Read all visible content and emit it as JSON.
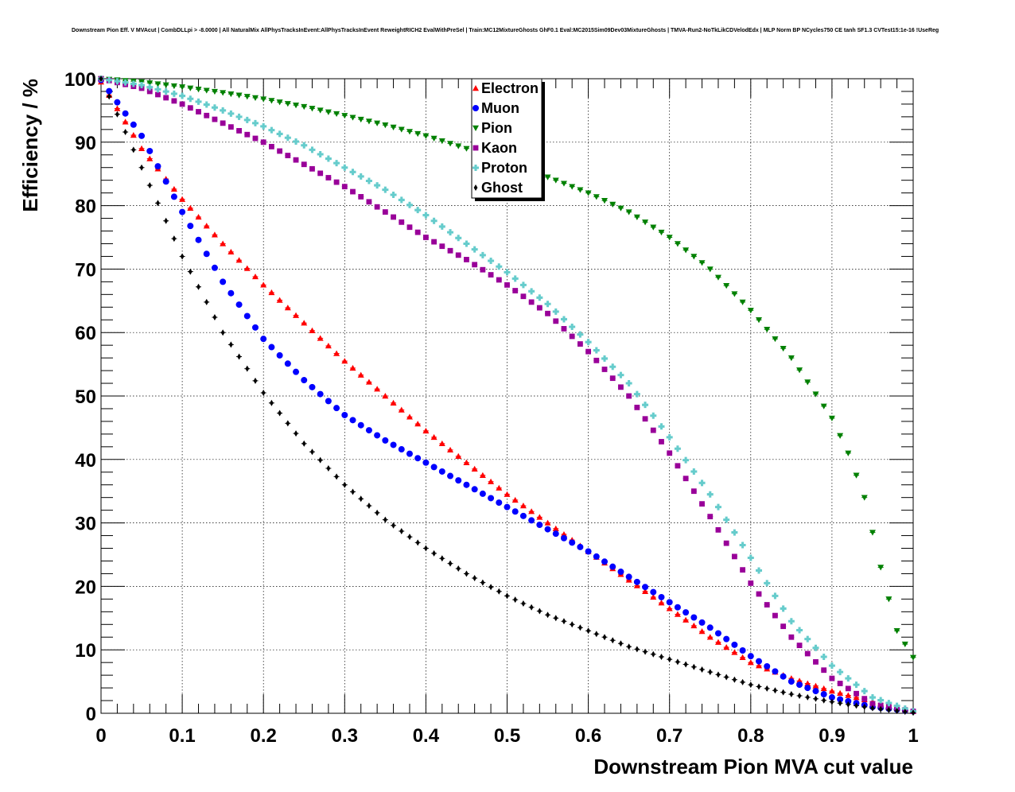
{
  "chart_data": {
    "type": "scatter",
    "title": "Downstream Pion Eff. V MVAcut | CombDLLpi > -8.0000 | All NaturalMix AllPhysTracksInEvent:AllPhysTracksInEvent ReweightRICH2 EvalWithPreSel | Train:MC12MixtureGhosts GhF0.1 Eval:MC2015Sim09Dev03MixtureGhosts | TMVA-Run2-NoTkLikCDVelodEdx | MLP Norm BP NCycles750 CE tanh SF1.3 CVTest15:1e-16 !UseReg",
    "xlabel": "Downstream Pion MVA cut value",
    "ylabel": "Efficiency / %",
    "xlim": [
      0,
      1
    ],
    "ylim": [
      0,
      100
    ],
    "x_ticks": [
      "0",
      "0.1",
      "0.2",
      "0.3",
      "0.4",
      "0.5",
      "0.6",
      "0.7",
      "0.8",
      "0.9",
      "1"
    ],
    "y_ticks": [
      "0",
      "10",
      "20",
      "30",
      "40",
      "50",
      "60",
      "70",
      "80",
      "90",
      "100"
    ],
    "grid": true,
    "legend_position": "top-center",
    "series": [
      {
        "name": "Electron",
        "color": "#ff0000",
        "marker": "triangle-up",
        "x": [
          0.0,
          0.05,
          0.1,
          0.15,
          0.2,
          0.25,
          0.3,
          0.35,
          0.4,
          0.45,
          0.5,
          0.55,
          0.6,
          0.65,
          0.7,
          0.75,
          0.8,
          0.85,
          0.9,
          0.95,
          1.0
        ],
        "y": [
          99.5,
          89,
          81,
          74,
          67.5,
          61.5,
          55.5,
          50,
          44.5,
          39.5,
          34.5,
          30,
          25.5,
          21,
          16.5,
          12,
          8,
          5.5,
          3.5,
          1.8,
          0.3
        ]
      },
      {
        "name": "Muon",
        "color": "#0000ff",
        "marker": "circle",
        "x": [
          0.0,
          0.05,
          0.1,
          0.15,
          0.2,
          0.25,
          0.3,
          0.35,
          0.4,
          0.45,
          0.5,
          0.55,
          0.6,
          0.65,
          0.7,
          0.75,
          0.8,
          0.85,
          0.9,
          0.95,
          1.0
        ],
        "y": [
          99.8,
          91,
          79,
          68,
          59,
          52.5,
          47,
          43,
          39.5,
          36,
          32.5,
          29,
          25.5,
          21.5,
          17.5,
          13.5,
          9,
          5,
          2.5,
          1.0,
          0.3
        ]
      },
      {
        "name": "Pion",
        "color": "#008000",
        "marker": "triangle-down",
        "x": [
          0.0,
          0.05,
          0.1,
          0.15,
          0.2,
          0.25,
          0.3,
          0.35,
          0.4,
          0.45,
          0.5,
          0.55,
          0.6,
          0.65,
          0.7,
          0.75,
          0.8,
          0.85,
          0.9,
          0.92,
          0.94,
          0.96,
          0.98,
          1.0
        ],
        "y": [
          100,
          99.5,
          98.7,
          97.8,
          96.8,
          95.6,
          94.2,
          92.7,
          91,
          89,
          86.8,
          84.5,
          82,
          79,
          75,
          70,
          63.5,
          56,
          46.5,
          41,
          34,
          23,
          13,
          8.8
        ]
      },
      {
        "name": "Kaon",
        "color": "#990099",
        "marker": "square",
        "x": [
          0.0,
          0.05,
          0.1,
          0.15,
          0.2,
          0.25,
          0.3,
          0.35,
          0.4,
          0.45,
          0.5,
          0.55,
          0.6,
          0.65,
          0.7,
          0.75,
          0.8,
          0.85,
          0.9,
          0.95,
          1.0
        ],
        "y": [
          100,
          98.5,
          96,
          93,
          90,
          86.5,
          83,
          79,
          75,
          71.5,
          67.5,
          63,
          57,
          50,
          41,
          31,
          20.5,
          12,
          5.5,
          1.5,
          0.3
        ]
      },
      {
        "name": "Proton",
        "color": "#66cccc",
        "marker": "cross",
        "x": [
          0.0,
          0.05,
          0.1,
          0.15,
          0.2,
          0.25,
          0.3,
          0.35,
          0.4,
          0.45,
          0.5,
          0.55,
          0.6,
          0.65,
          0.7,
          0.75,
          0.8,
          0.85,
          0.9,
          0.95,
          1.0
        ],
        "y": [
          100,
          99,
          97.3,
          95,
          92.5,
          89.5,
          86,
          82.5,
          78.5,
          74,
          69.5,
          64.5,
          58.5,
          52,
          43.5,
          34.5,
          24.5,
          14.5,
          7.5,
          2.5,
          0.3
        ]
      },
      {
        "name": "Ghost",
        "color": "#000000",
        "marker": "diamond",
        "x": [
          0.0,
          0.05,
          0.1,
          0.15,
          0.2,
          0.25,
          0.3,
          0.35,
          0.4,
          0.45,
          0.5,
          0.55,
          0.6,
          0.65,
          0.7,
          0.75,
          0.8,
          0.85,
          0.9,
          0.95,
          1.0
        ],
        "y": [
          100,
          86,
          72,
          60,
          50.5,
          42.5,
          36,
          30.5,
          26,
          22,
          18.5,
          15.5,
          13,
          10.5,
          8.5,
          6.5,
          4.5,
          3,
          1.8,
          0.8,
          0.1
        ]
      }
    ]
  }
}
